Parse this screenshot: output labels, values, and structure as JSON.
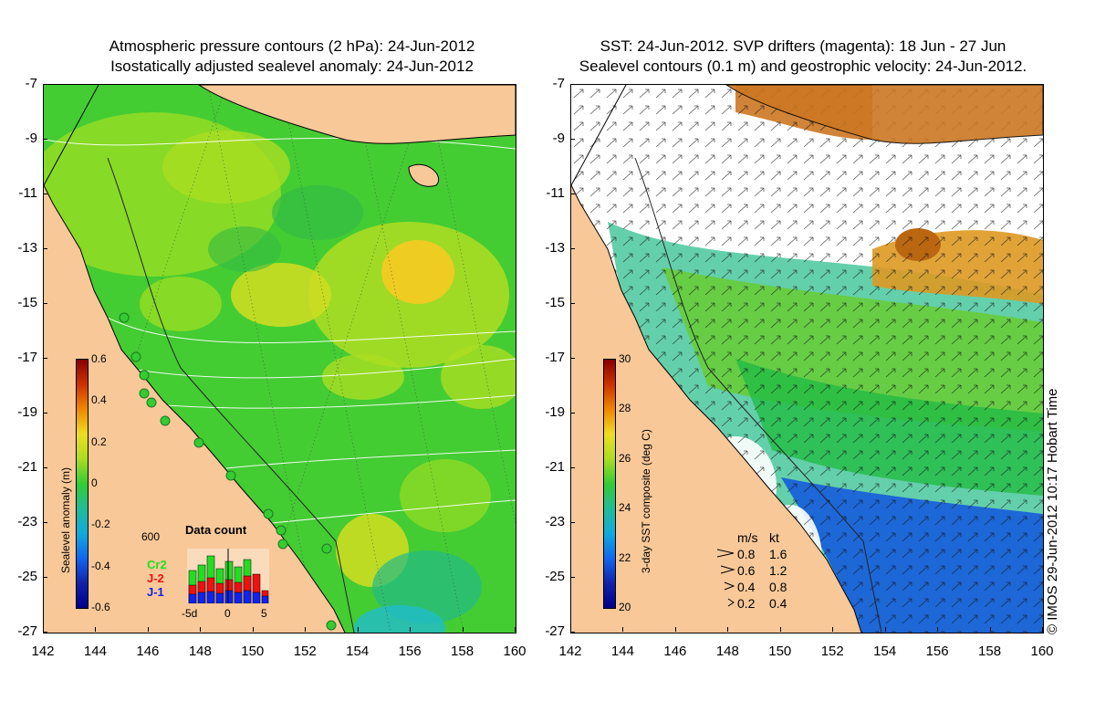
{
  "left_panel": {
    "title_line1": "Atmospheric pressure contours (2 hPa): 24-Jun-2012",
    "title_line2": "Isostatically adjusted sealevel anomaly: 24-Jun-2012",
    "colorbar": {
      "title": "Sealevel anomaly (m)",
      "ticks": [
        "0.6",
        "0.4",
        "0.2",
        "0",
        "-0.2",
        "-0.4",
        "-0.6"
      ]
    },
    "data_count": {
      "title": "Data count",
      "ymax_label": "600",
      "series": [
        "Cr2",
        "J-2",
        "J-1"
      ],
      "series_colors": [
        "#22dd22",
        "#ee1111",
        "#1122ee"
      ],
      "x_ticks": [
        "-5d",
        "0",
        "5"
      ]
    }
  },
  "right_panel": {
    "title_line1": "SST: 24-Jun-2012. SVP drifters (magenta): 18 Jun - 27 Jun",
    "title_line2": "Sealevel contours (0.1 m) and geostrophic velocity: 24-Jun-2012.",
    "colorbar": {
      "title": "3-day SST composite (deg C)",
      "ticks": [
        "30",
        "28",
        "26",
        "24",
        "22",
        "20"
      ]
    },
    "velocity_legend": {
      "header_ms": "m/s",
      "header_kt": "kt",
      "rows": [
        {
          "ms": "0.8",
          "kt": "1.6"
        },
        {
          "ms": "0.6",
          "kt": "1.2"
        },
        {
          "ms": "0.4",
          "kt": "0.8"
        },
        {
          "ms": "0.2",
          "kt": "0.4"
        }
      ]
    }
  },
  "axes": {
    "lat_ticks": [
      "-7",
      "-9",
      "-11",
      "-13",
      "-15",
      "-17",
      "-19",
      "-21",
      "-23",
      "-25",
      "-27"
    ],
    "lon_ticks": [
      "142",
      "144",
      "146",
      "148",
      "150",
      "152",
      "154",
      "156",
      "158",
      "160"
    ]
  },
  "credit": "© IMOS 29-Jun-2012 10:17 Hobart Time",
  "colors": {
    "land": "#f8c898",
    "ssh_green": "#33cc33",
    "ssh_yellow_green": "#aadd22",
    "ssh_yellow": "#eedd22",
    "sst_orange": "#dd8822",
    "sst_blue": "#1133dd"
  }
}
